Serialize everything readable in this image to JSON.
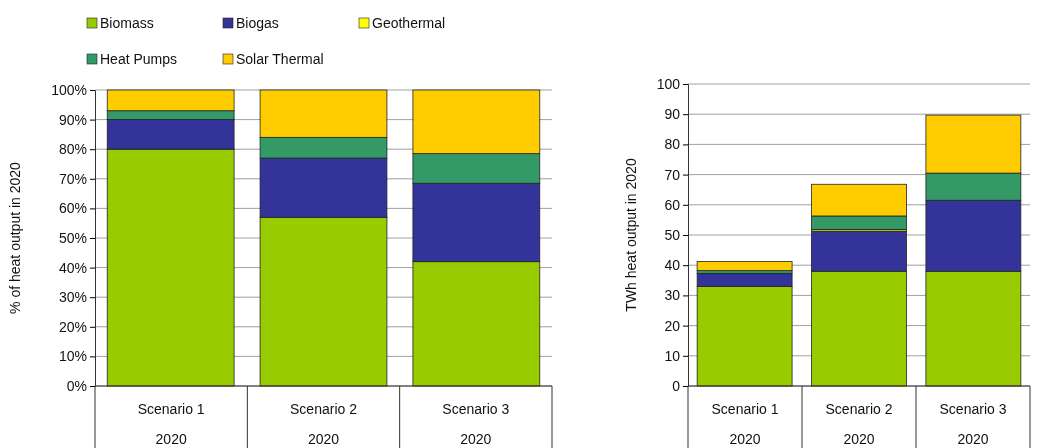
{
  "chart_data": [
    {
      "type": "bar",
      "stacked": true,
      "ylabel": "% of heat output in 2020",
      "categories": [
        "Scenario 1\n2020",
        "Scenario 2\n2020",
        "Scenario 3\n2020"
      ],
      "series": [
        {
          "name": "Biomass",
          "color": "#99cc00",
          "values": [
            80,
            57,
            42
          ]
        },
        {
          "name": "Biogas",
          "color": "#333399",
          "values": [
            10,
            20,
            26.5
          ]
        },
        {
          "name": "Geothermal",
          "color": "#ffff00",
          "values": [
            0,
            0,
            0
          ]
        },
        {
          "name": "Heat Pumps",
          "color": "#339966",
          "values": [
            3,
            7,
            10
          ]
        },
        {
          "name": "Solar Thermal",
          "color": "#ffcc00",
          "values": [
            7,
            16,
            21.5
          ]
        }
      ],
      "ylim": [
        0,
        100
      ],
      "yticks": [
        {
          "value": 0,
          "label": "0%"
        },
        {
          "value": 10,
          "label": "10%"
        },
        {
          "value": 20,
          "label": "20%"
        },
        {
          "value": 30,
          "label": "30%"
        },
        {
          "value": 40,
          "label": "40%"
        },
        {
          "value": 50,
          "label": "50%"
        },
        {
          "value": 60,
          "label": "60%"
        },
        {
          "value": 70,
          "label": "70%"
        },
        {
          "value": 80,
          "label": "80%"
        },
        {
          "value": 90,
          "label": "90%"
        },
        {
          "value": 100,
          "label": "100%"
        }
      ],
      "grid": "y",
      "legend": "top"
    },
    {
      "type": "bar",
      "stacked": true,
      "ylabel": "TWh heat output in 2020",
      "categories": [
        "Scenario 1\n2020",
        "Scenario 2\n2020",
        "Scenario 3\n2020"
      ],
      "series": [
        {
          "color": "#99cc00",
          "values": [
            33,
            38,
            38
          ]
        },
        {
          "color": "#333399",
          "values": [
            4.3,
            13.3,
            23.5
          ]
        },
        {
          "color": "#ffff00",
          "values": [
            null,
            0.5,
            null
          ]
        },
        {
          "color": "#339966",
          "values": [
            0.9,
            4.5,
            9
          ]
        },
        {
          "color": "#ffcc00",
          "values": [
            3,
            10.5,
            19.2
          ]
        }
      ],
      "ylim": [
        0,
        100
      ],
      "yticks": [
        0,
        10,
        20,
        30,
        40,
        50,
        60,
        70,
        80,
        90,
        100
      ],
      "grid": "y"
    }
  ]
}
